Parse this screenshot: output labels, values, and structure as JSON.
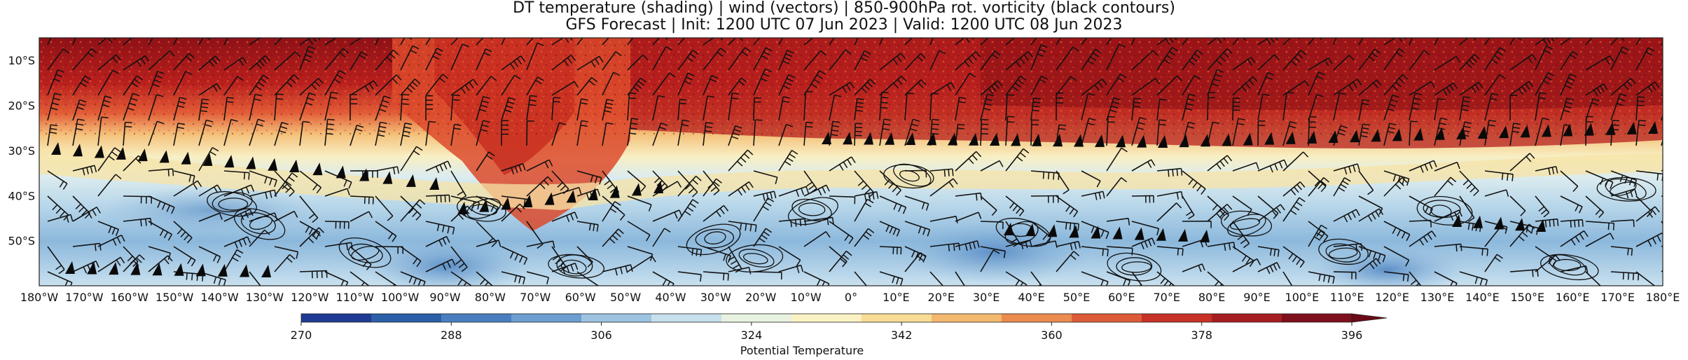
{
  "title": {
    "line1": "DT temperature (shading) | wind (vectors) | 850-900hPa rot. vorticity (black contours)",
    "line2": "GFS Forecast | Init: 1200 UTC 07 Jun 2023 | Valid: 1200 UTC 08 Jun 2023"
  },
  "map": {
    "lon_labels": [
      "180°W",
      "170°W",
      "160°W",
      "150°W",
      "140°W",
      "130°W",
      "120°W",
      "110°W",
      "100°W",
      "90°W",
      "80°W",
      "70°W",
      "60°W",
      "50°W",
      "40°W",
      "30°W",
      "20°W",
      "10°W",
      "0°",
      "10°E",
      "20°E",
      "30°E",
      "40°E",
      "50°E",
      "60°E",
      "70°E",
      "80°E",
      "90°E",
      "100°E",
      "110°E",
      "120°E",
      "130°E",
      "140°E",
      "150°E",
      "160°E",
      "170°E",
      "180°E"
    ],
    "lat_labels": [
      "10°S",
      "20°S",
      "30°S",
      "40°S",
      "50°S"
    ],
    "lat_values": [
      -10,
      -20,
      -30,
      -40,
      -50
    ],
    "lat_range": [
      -5,
      -60
    ],
    "lon_range": [
      -180,
      180
    ]
  },
  "colorbar": {
    "ticks": [
      "270",
      "288",
      "306",
      "324",
      "342",
      "360",
      "378",
      "396"
    ],
    "label": "Potential Temperature",
    "colors": [
      "#1f3a93",
      "#2b5fa8",
      "#4a7fbf",
      "#6e9ed1",
      "#9cc3df",
      "#c6e0ec",
      "#e8f2e0",
      "#fbf2c4",
      "#f8dc95",
      "#f3b86f",
      "#ec8b4f",
      "#dd5b38",
      "#c73227",
      "#a61d22",
      "#7e0f1c"
    ],
    "min": 270,
    "max": 396
  }
}
